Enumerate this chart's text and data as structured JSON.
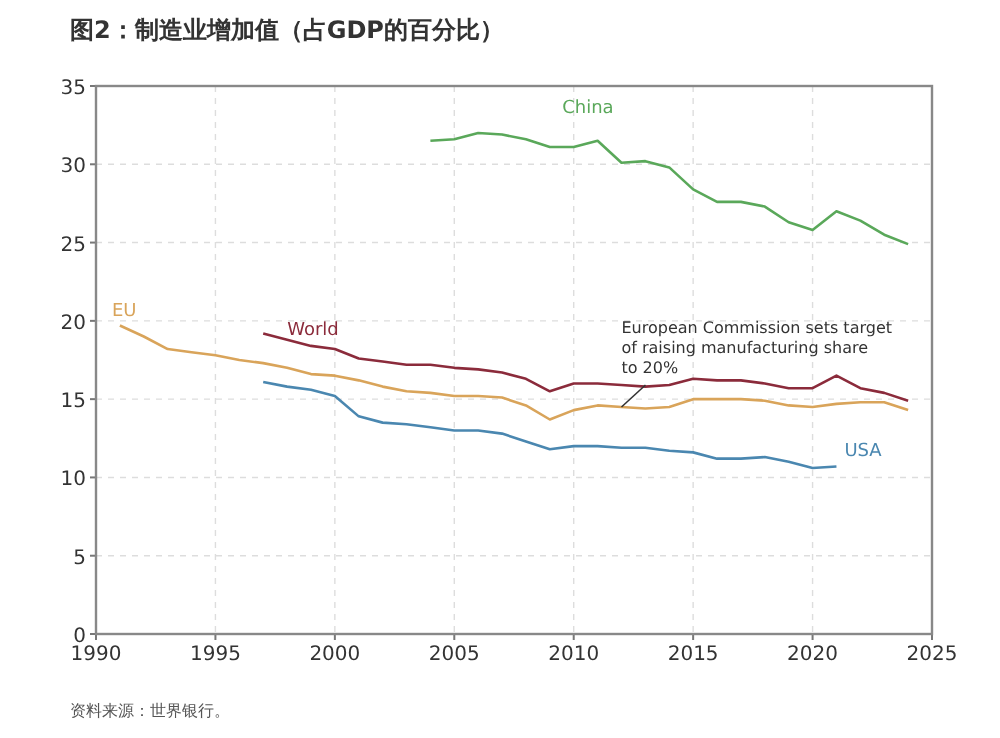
{
  "chart_data": {
    "type": "line",
    "title": "图2：制造业增加值（占GDP的百分比）",
    "annotations": [
      {
        "text": "European Commission sets target of raising manufacturing share to 20%",
        "x": 2012,
        "y": 14.5
      },
      "资料来源：世界银行。"
    ],
    "xlim": [
      1990,
      2025
    ],
    "xticks": [
      1990,
      1995,
      2000,
      2005,
      2010,
      2015,
      2020,
      2025
    ],
    "ylim": [
      0,
      35
    ],
    "yticks": [
      0,
      5,
      10,
      15,
      20,
      25,
      30,
      35
    ],
    "grid": true,
    "legend": false,
    "marker": "none",
    "line_style": "solid",
    "series": [
      {
        "name": "China",
        "color": "#5aa85a",
        "x": [
          2004,
          2005,
          2006,
          2007,
          2008,
          2009,
          2010,
          2011,
          2012,
          2013,
          2014,
          2015,
          2016,
          2017,
          2018,
          2019,
          2020,
          2021,
          2022,
          2023,
          2024
        ],
        "values": [
          31.5,
          31.6,
          32.0,
          31.9,
          31.6,
          31.1,
          31.1,
          31.5,
          30.1,
          30.2,
          29.8,
          28.4,
          27.6,
          27.6,
          27.3,
          26.3,
          25.8,
          27.0,
          26.4,
          25.5,
          24.9
        ]
      },
      {
        "name": "EU",
        "color": "#d9a45a",
        "x": [
          1991,
          1992,
          1993,
          1994,
          1995,
          1996,
          1997,
          1998,
          1999,
          2000,
          2001,
          2002,
          2003,
          2004,
          2005,
          2006,
          2007,
          2008,
          2009,
          2010,
          2011,
          2012,
          2013,
          2014,
          2015,
          2016,
          2017,
          2018,
          2019,
          2020,
          2021,
          2022,
          2023,
          2024
        ],
        "values": [
          19.7,
          19.0,
          18.2,
          18.0,
          17.8,
          17.5,
          17.3,
          17.0,
          16.6,
          16.5,
          16.2,
          15.8,
          15.5,
          15.4,
          15.2,
          15.2,
          15.1,
          14.6,
          13.7,
          14.3,
          14.6,
          14.5,
          14.4,
          14.5,
          15.0,
          15.0,
          15.0,
          14.9,
          14.6,
          14.5,
          14.7,
          14.8,
          14.8,
          14.3
        ]
      },
      {
        "name": "World",
        "color": "#8b2b3b",
        "x": [
          1997,
          1998,
          1999,
          2000,
          2001,
          2002,
          2003,
          2004,
          2005,
          2006,
          2007,
          2008,
          2009,
          2010,
          2011,
          2012,
          2013,
          2014,
          2015,
          2016,
          2017,
          2018,
          2019,
          2020,
          2021,
          2022,
          2023,
          2024
        ],
        "values": [
          19.2,
          18.8,
          18.4,
          18.2,
          17.6,
          17.4,
          17.2,
          17.2,
          17.0,
          16.9,
          16.7,
          16.3,
          15.5,
          16.0,
          16.0,
          15.9,
          15.8,
          15.9,
          16.3,
          16.2,
          16.2,
          16.0,
          15.7,
          15.7,
          16.5,
          15.7,
          15.4,
          14.9
        ]
      },
      {
        "name": "USA",
        "color": "#4a87b0",
        "x": [
          1997,
          1998,
          1999,
          2000,
          2001,
          2002,
          2003,
          2004,
          2005,
          2006,
          2007,
          2008,
          2009,
          2010,
          2011,
          2012,
          2013,
          2014,
          2015,
          2016,
          2017,
          2018,
          2019,
          2020,
          2021
        ],
        "values": [
          16.1,
          15.8,
          15.6,
          15.2,
          13.9,
          13.5,
          13.4,
          13.2,
          13.0,
          13.0,
          12.8,
          12.3,
          11.8,
          12.0,
          12.0,
          11.9,
          11.9,
          11.7,
          11.6,
          11.2,
          11.2,
          11.3,
          11.0,
          10.6,
          10.7
        ]
      }
    ]
  }
}
